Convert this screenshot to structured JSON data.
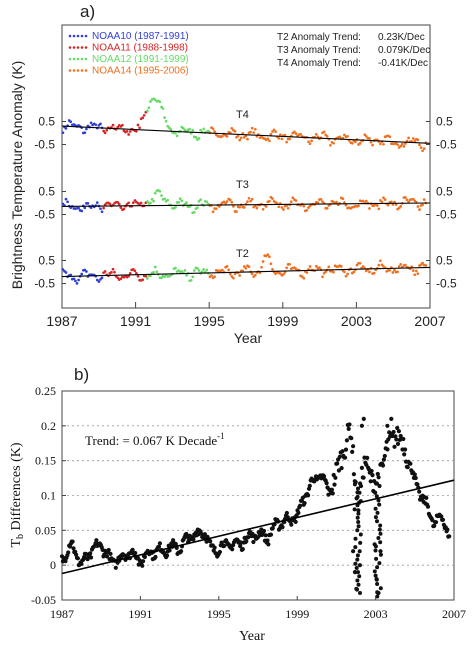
{
  "chart_data": [
    {
      "panel": "a)",
      "type": "scatter",
      "xlabel": "Year",
      "ylabel": "Brightness Temperature Anomaly (K)",
      "xlim": [
        1987,
        2007
      ],
      "x_ticks": [
        "1987",
        "1991",
        "1995",
        "1999",
        "2003",
        "2007"
      ],
      "y_tick_labels": [
        "0.5",
        "-0.5"
      ],
      "legend_position": "top-left",
      "series": [
        {
          "name": "NOAA10 (1987-1991)",
          "color": "#2f3fd6",
          "x_range": [
            1987.0,
            1989.2
          ]
        },
        {
          "name": "NOAA11 (1988-1998)",
          "color": "#d82424",
          "x_range": [
            1989.2,
            1991.6
          ]
        },
        {
          "name": "NOAA12 (1991-1999)",
          "color": "#67d967",
          "x_range": [
            1991.6,
            1995.0
          ]
        },
        {
          "name": "NOAA14 (1995-2006)",
          "color": "#f07020",
          "x_range": [
            1995.0,
            2006.8
          ]
        }
      ],
      "channels": [
        {
          "label": "T4",
          "trend_text": "T4 Anomaly Trend:",
          "trend_value": "-0.41K/Dec",
          "trend_k_per_decade": -0.41,
          "trend_start": 0.3,
          "trend_end": -0.45
        },
        {
          "label": "T3",
          "trend_text": "T3 Anomaly Trend:",
          "trend_value": "0.079K/Dec",
          "trend_k_per_decade": 0.079,
          "trend_start": -0.15,
          "trend_end": 0.0
        },
        {
          "label": "T2",
          "trend_text": "T2 Anomaly Trend:",
          "trend_value": "0.23K/Dec",
          "trend_k_per_decade": 0.23,
          "trend_start": -0.2,
          "trend_end": 0.2
        }
      ]
    },
    {
      "panel": "b)",
      "type": "scatter",
      "xlabel": "Year",
      "ylabel_main": "T",
      "ylabel_sub": "b",
      "ylabel_rest": " Differences (K)",
      "xlim": [
        1987,
        2007
      ],
      "ylim": [
        -0.05,
        0.25
      ],
      "x_ticks": [
        "1987",
        "1991",
        "1995",
        "1999",
        "2003",
        "2007"
      ],
      "y_ticks": [
        "-0.05",
        "0",
        "0.05",
        "0.1",
        "0.15",
        "0.2",
        "0.25"
      ],
      "grid": "horizontal dotted",
      "annotation": "Trend: = 0.067 K Decade",
      "annotation_sup": "-1",
      "trend_k_per_decade": 0.067,
      "trend_line": [
        [
          1987,
          -0.012
        ],
        [
          2007,
          0.122
        ]
      ],
      "key_points": [
        [
          1987.0,
          0.01
        ],
        [
          1987.5,
          0.03
        ],
        [
          1988.0,
          0.0
        ],
        [
          1988.5,
          0.02
        ],
        [
          1989.0,
          0.03
        ],
        [
          1989.5,
          0.005
        ],
        [
          1990.0,
          0.01
        ],
        [
          1990.5,
          0.02
        ],
        [
          1991.0,
          0.005
        ],
        [
          1991.5,
          0.02
        ],
        [
          1992.0,
          0.02
        ],
        [
          1992.5,
          0.025
        ],
        [
          1993.0,
          0.025
        ],
        [
          1993.5,
          0.04
        ],
        [
          1994.0,
          0.045
        ],
        [
          1994.3,
          0.05
        ],
        [
          1994.6,
          0.02
        ],
        [
          1995.0,
          0.025
        ],
        [
          1995.5,
          0.03
        ],
        [
          1996.0,
          0.03
        ],
        [
          1996.5,
          0.04
        ],
        [
          1997.0,
          0.045
        ],
        [
          1997.5,
          0.04
        ],
        [
          1998.0,
          0.06
        ],
        [
          1998.5,
          0.065
        ],
        [
          1999.0,
          0.07
        ],
        [
          1999.4,
          0.1
        ],
        [
          1999.8,
          0.12
        ],
        [
          2000.2,
          0.13
        ],
        [
          2000.6,
          0.105
        ],
        [
          2001.0,
          0.13
        ],
        [
          2001.4,
          0.17
        ],
        [
          2001.7,
          0.195
        ],
        [
          2002.1,
          0.09
        ],
        [
          2002.5,
          0.15
        ],
        [
          2003.0,
          0.11
        ],
        [
          2003.5,
          0.16
        ],
        [
          2004.0,
          0.19
        ],
        [
          2004.5,
          0.17
        ],
        [
          2005.0,
          0.12
        ],
        [
          2005.5,
          0.09
        ],
        [
          2006.0,
          0.06
        ],
        [
          2006.4,
          0.07
        ],
        [
          2006.8,
          0.04
        ]
      ],
      "dip_points": [
        [
          2001.85,
          0.02
        ],
        [
          2001.95,
          -0.01
        ],
        [
          2002.05,
          -0.035
        ],
        [
          2002.2,
          0.0
        ],
        [
          2002.95,
          0.03
        ],
        [
          2003.05,
          -0.02
        ],
        [
          2003.15,
          -0.04
        ],
        [
          2003.25,
          0.02
        ],
        [
          2002.3,
          0.2
        ],
        [
          2002.4,
          0.21
        ],
        [
          2003.6,
          0.2
        ],
        [
          2003.8,
          0.21
        ]
      ]
    }
  ]
}
